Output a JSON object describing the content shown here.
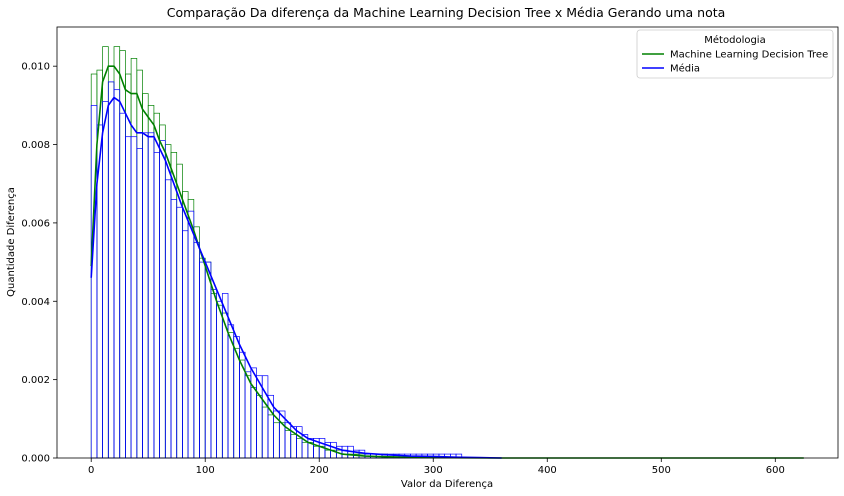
{
  "chart_data": {
    "type": "bar",
    "subtype": "histogram with kde lines",
    "title": "Comparação Da diferença da Machine Learning Decision Tree x Média Gerando uma nota",
    "xlabel": "Valor da Diferença",
    "ylabel": "Quantidade Diferença",
    "xlim": [
      -30,
      655
    ],
    "ylim": [
      0,
      0.011
    ],
    "xticks": [
      0,
      100,
      200,
      300,
      400,
      500,
      600
    ],
    "yticks": [
      0.0,
      0.002,
      0.004,
      0.006,
      0.008,
      0.01
    ],
    "xtick_labels": [
      "0",
      "100",
      "200",
      "300",
      "400",
      "500",
      "600"
    ],
    "ytick_labels": [
      "0.000",
      "0.002",
      "0.004",
      "0.006",
      "0.008",
      "0.010"
    ],
    "grid": false,
    "legend": {
      "title": "Métodologia",
      "position": "top-right"
    },
    "series": [
      {
        "name": "Machine Learning Decision Tree",
        "color": "#008000",
        "bin_width": 5,
        "bins_x": [
          0,
          5,
          10,
          15,
          20,
          25,
          30,
          35,
          40,
          45,
          50,
          55,
          60,
          65,
          70,
          75,
          80,
          85,
          90,
          95,
          100,
          105,
          110,
          115,
          120,
          125,
          130,
          135,
          140,
          145,
          150,
          155,
          160,
          165,
          170,
          175,
          180,
          185,
          190,
          195,
          200,
          205,
          210,
          215,
          220,
          225,
          230,
          235,
          240,
          245,
          250,
          255,
          260,
          265,
          270,
          275,
          280,
          285,
          290,
          295,
          300
        ],
        "bins_y": [
          0.0098,
          0.0099,
          0.0105,
          0.0096,
          0.0105,
          0.0104,
          0.0098,
          0.0102,
          0.0099,
          0.0093,
          0.009,
          0.0088,
          0.0085,
          0.008,
          0.0078,
          0.0075,
          0.0068,
          0.0066,
          0.0059,
          0.0051,
          0.005,
          0.0042,
          0.0039,
          0.0037,
          0.0032,
          0.0028,
          0.0025,
          0.0021,
          0.0018,
          0.0016,
          0.0013,
          0.0011,
          0.0009,
          0.0009,
          0.0007,
          0.0006,
          0.0005,
          0.0004,
          0.0004,
          0.0003,
          0.0003,
          0.0002,
          0.0002,
          0.0002,
          0.0002,
          0.0001,
          0.0001,
          0.0001,
          0.0001,
          0.0001,
          0.0001,
          0.0001,
          0.0,
          0.0,
          0.0,
          0.0,
          0.0,
          0.0,
          0.0,
          0.0,
          0.0
        ],
        "kde_x": [
          0,
          5,
          10,
          15,
          20,
          25,
          30,
          35,
          40,
          45,
          50,
          55,
          60,
          65,
          70,
          75,
          80,
          90,
          100,
          110,
          120,
          130,
          140,
          150,
          160,
          170,
          180,
          190,
          200,
          210,
          220,
          240,
          260,
          280,
          300,
          350,
          400,
          450,
          500,
          550,
          600,
          625
        ],
        "kde_y": [
          0.0049,
          0.008,
          0.0096,
          0.01,
          0.01,
          0.0098,
          0.0094,
          0.0093,
          0.0093,
          0.0089,
          0.0087,
          0.0085,
          0.0081,
          0.0078,
          0.0074,
          0.007,
          0.0066,
          0.0058,
          0.0049,
          0.004,
          0.0032,
          0.0025,
          0.0019,
          0.0015,
          0.0011,
          0.0008,
          0.0006,
          0.0004,
          0.0003,
          0.0002,
          0.0001,
          5e-05,
          3e-05,
          2e-05,
          1e-05,
          0.0,
          0.0,
          0.0,
          0.0,
          0.0,
          0.0,
          0.0
        ]
      },
      {
        "name": "Média",
        "color": "#0000ff",
        "bin_width": 5,
        "bins_x": [
          0,
          5,
          10,
          15,
          20,
          25,
          30,
          35,
          40,
          45,
          50,
          55,
          60,
          65,
          70,
          75,
          80,
          85,
          90,
          95,
          100,
          105,
          110,
          115,
          120,
          125,
          130,
          135,
          140,
          145,
          150,
          155,
          160,
          165,
          170,
          175,
          180,
          185,
          190,
          195,
          200,
          205,
          210,
          215,
          220,
          225,
          230,
          235,
          240,
          245,
          250,
          255,
          260,
          265,
          270,
          275,
          280,
          285,
          290,
          295,
          300,
          305,
          310,
          315,
          320
        ],
        "bins_y": [
          0.009,
          0.0085,
          0.0091,
          0.0096,
          0.0094,
          0.0088,
          0.0082,
          0.0082,
          0.0079,
          0.0083,
          0.0083,
          0.0078,
          0.0081,
          0.0071,
          0.0066,
          0.0064,
          0.0058,
          0.0063,
          0.0055,
          0.005,
          0.005,
          0.0043,
          0.004,
          0.0042,
          0.0034,
          0.0031,
          0.0027,
          0.0022,
          0.0023,
          0.0021,
          0.0021,
          0.0016,
          0.0012,
          0.0012,
          0.0009,
          0.0008,
          0.0008,
          0.0006,
          0.0005,
          0.0005,
          0.0005,
          0.0004,
          0.0004,
          0.0003,
          0.0003,
          0.0003,
          0.0002,
          0.0002,
          0.0001,
          0.0001,
          0.0001,
          0.0001,
          0.0001,
          0.0001,
          0.0001,
          0.0001,
          0.0001,
          0.0001,
          0.0001,
          0.0001,
          0.0001,
          0.0001,
          0.0001,
          0.0001,
          0.0001
        ],
        "kde_x": [
          0,
          5,
          10,
          15,
          20,
          25,
          30,
          35,
          40,
          45,
          50,
          55,
          60,
          65,
          70,
          75,
          80,
          90,
          100,
          110,
          120,
          130,
          140,
          150,
          160,
          170,
          180,
          190,
          200,
          210,
          220,
          240,
          260,
          280,
          300,
          320,
          340,
          360
        ],
        "kde_y": [
          0.0046,
          0.007,
          0.0083,
          0.009,
          0.0092,
          0.0091,
          0.0088,
          0.0085,
          0.0083,
          0.0083,
          0.0082,
          0.0082,
          0.0079,
          0.0076,
          0.0072,
          0.0068,
          0.0064,
          0.0057,
          0.005,
          0.0043,
          0.0036,
          0.0029,
          0.0023,
          0.0018,
          0.0013,
          0.001,
          0.0007,
          0.0005,
          0.0004,
          0.0003,
          0.0002,
          0.00012,
          8e-05,
          5e-05,
          4e-05,
          2e-05,
          1e-05,
          0.0
        ]
      }
    ]
  }
}
